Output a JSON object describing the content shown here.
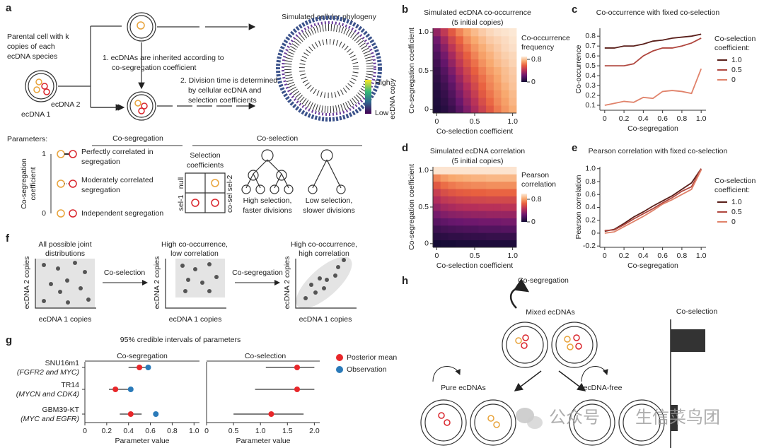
{
  "panels": {
    "letters": [
      "a",
      "b",
      "c",
      "d",
      "e",
      "f",
      "g",
      "h"
    ],
    "a": {
      "parental": [
        "Parental cell with k",
        "copies of each",
        "ecDNA species"
      ],
      "ecdna1": "ecDNA 1",
      "ecdna2": "ecDNA 2",
      "step1": [
        "1. ecDNAs are inherited according to",
        "co-segregation coefficient"
      ],
      "step2": [
        "2. Division time is determined",
        "by cellular ecDNA and",
        "selection coefficients"
      ],
      "phylogeny_title": "Simulated cellular phylogeny",
      "colorbar_high": "High",
      "colorbar_low": "Low",
      "colorbar_label": "ecDNA copy",
      "parameters": "Parameters:",
      "coseg_heading": "Co-segregation",
      "cosel_heading": "Co-selection",
      "coseg_axis": [
        "Co-segregation",
        "coefficient"
      ],
      "coseg_top": 1,
      "coseg_bottom": 0,
      "perfect": [
        "Perfectly correlated in",
        "segregation"
      ],
      "moderate": [
        "Moderately correlated",
        "segregation"
      ],
      "independent": "Independent segregation",
      "sel_coeff": [
        "Selection",
        "coefficients"
      ],
      "null": "null",
      "sel2": "sel-2",
      "sel1": "sel-1",
      "cosel": "co-sel",
      "high_sel": [
        "High selection,",
        "faster divisions"
      ],
      "low_sel": [
        "Low selection,",
        "slower divisions"
      ]
    },
    "f": {
      "all": [
        "All possible joint",
        "distributions"
      ],
      "arrow1": "Co-selection",
      "mid": [
        "High co-occurrence,",
        "low correlation"
      ],
      "arrow2": "Co-segregation",
      "right": [
        "High co-occurrence,",
        "high correlation"
      ],
      "xlabel": "ecDNA 1 copies",
      "ylabel": "ecDNA 2 copies"
    },
    "g": {
      "title": "95% credible intervals of parameters"
    },
    "h": {
      "coseg": "Co-segregation",
      "mixed": "Mixed ecDNAs",
      "pure": "Pure ecDNAs",
      "free": "ecDNA-free",
      "cosel": "Co-selection"
    },
    "watermark": [
      "公众号",
      "生信菜鸟团"
    ]
  },
  "chart_data": [
    {
      "type": "heatmap",
      "title": [
        "Simulated ecDNA co-occurrence",
        "(5 initial copies)"
      ],
      "xlabel": "Co-selection coefficient",
      "ylabel": "Co-segregation coefficient",
      "x": [
        0,
        0.1,
        0.2,
        0.3,
        0.4,
        0.5,
        0.6,
        0.7,
        0.8,
        0.9,
        1
      ],
      "y": [
        0,
        0.1,
        0.2,
        0.3,
        0.4,
        0.5,
        0.6,
        0.7,
        0.8,
        0.9,
        1
      ],
      "z": [
        [
          0.02,
          0.05,
          0.1,
          0.18,
          0.28,
          0.38,
          0.48,
          0.56,
          0.64,
          0.7,
          0.75
        ],
        [
          0.03,
          0.07,
          0.13,
          0.22,
          0.32,
          0.42,
          0.52,
          0.6,
          0.67,
          0.72,
          0.77
        ],
        [
          0.04,
          0.09,
          0.16,
          0.26,
          0.36,
          0.46,
          0.56,
          0.63,
          0.69,
          0.74,
          0.78
        ],
        [
          0.05,
          0.11,
          0.19,
          0.3,
          0.4,
          0.5,
          0.59,
          0.66,
          0.71,
          0.76,
          0.8
        ],
        [
          0.07,
          0.14,
          0.23,
          0.34,
          0.45,
          0.54,
          0.62,
          0.68,
          0.73,
          0.78,
          0.81
        ],
        [
          0.09,
          0.17,
          0.27,
          0.39,
          0.49,
          0.58,
          0.65,
          0.71,
          0.75,
          0.79,
          0.82
        ],
        [
          0.12,
          0.21,
          0.32,
          0.44,
          0.54,
          0.62,
          0.69,
          0.74,
          0.78,
          0.81,
          0.84
        ],
        [
          0.15,
          0.25,
          0.37,
          0.49,
          0.58,
          0.66,
          0.72,
          0.76,
          0.8,
          0.83,
          0.85
        ],
        [
          0.19,
          0.3,
          0.43,
          0.54,
          0.63,
          0.7,
          0.75,
          0.79,
          0.82,
          0.85,
          0.87
        ],
        [
          0.24,
          0.36,
          0.49,
          0.59,
          0.68,
          0.74,
          0.78,
          0.82,
          0.84,
          0.86,
          0.88
        ],
        [
          0.32,
          0.44,
          0.56,
          0.66,
          0.73,
          0.78,
          0.82,
          0.85,
          0.87,
          0.88,
          0.89
        ]
      ],
      "xlim": [
        -0.05,
        1.05
      ],
      "ylim": [
        -0.05,
        1.05
      ],
      "xticks": [
        0,
        0.5,
        {
          "value": 1,
          "label": "1.0"
        }
      ],
      "yticks": [
        0,
        0.5,
        {
          "value": 1,
          "label": "1.0"
        }
      ],
      "colorbar_label": [
        "Co-occurrence",
        "frequency"
      ],
      "clim": [
        0,
        0.9
      ],
      "cticks": [
        0,
        0.8
      ]
    },
    {
      "type": "line",
      "title": "Co-occurrence with fixed co-selection",
      "xlabel": "Co-segregation",
      "ylabel": "Co-occurrence",
      "x": [
        0,
        0.1,
        0.2,
        0.3,
        0.4,
        0.5,
        0.6,
        0.7,
        0.8,
        0.9,
        1
      ],
      "series": [
        {
          "name": "1.0",
          "color": "#5a1f1a",
          "values": [
            0.68,
            0.68,
            0.7,
            0.7,
            0.72,
            0.75,
            0.76,
            0.78,
            0.79,
            0.8,
            0.82
          ]
        },
        {
          "name": "0.5",
          "color": "#b0473f",
          "values": [
            0.5,
            0.5,
            0.5,
            0.52,
            0.6,
            0.65,
            0.68,
            0.68,
            0.7,
            0.73,
            0.78
          ]
        },
        {
          "name": "0",
          "color": "#e0826a",
          "values": [
            0.1,
            0.12,
            0.14,
            0.13,
            0.18,
            0.17,
            0.24,
            0.25,
            0.24,
            0.22,
            0.47
          ]
        }
      ],
      "legend_title": [
        "Co-selection",
        "coefficient:"
      ],
      "xlim": [
        -0.05,
        1.05
      ],
      "ylim": [
        0.05,
        0.88
      ],
      "xticks": [
        0,
        0.2,
        0.4,
        0.6,
        0.8,
        {
          "value": 1,
          "label": "1.0"
        }
      ],
      "yticks": [
        0.1,
        0.2,
        0.3,
        0.4,
        0.5,
        0.6,
        0.7,
        0.8
      ]
    },
    {
      "type": "heatmap",
      "title": [
        "Simulated ecDNA correlation",
        "(5 initial copies)"
      ],
      "xlabel": "Co-selection coefficient",
      "ylabel": "Co-segregation coefficient",
      "x": [
        0,
        0.1,
        0.2,
        0.3,
        0.4,
        0.5,
        0.6,
        0.7,
        0.8,
        0.9,
        1
      ],
      "y": [
        0,
        0.1,
        0.2,
        0.3,
        0.4,
        0.5,
        0.6,
        0.7,
        0.8,
        0.9,
        1
      ],
      "z": [
        [
          0.0,
          0.01,
          0.01,
          0.02,
          0.02,
          0.02,
          0.03,
          0.03,
          0.03,
          0.03,
          0.03
        ],
        [
          0.06,
          0.07,
          0.08,
          0.08,
          0.09,
          0.09,
          0.09,
          0.1,
          0.1,
          0.1,
          0.1
        ],
        [
          0.12,
          0.14,
          0.15,
          0.16,
          0.17,
          0.17,
          0.18,
          0.18,
          0.18,
          0.19,
          0.19
        ],
        [
          0.2,
          0.22,
          0.24,
          0.25,
          0.26,
          0.26,
          0.27,
          0.27,
          0.27,
          0.28,
          0.28
        ],
        [
          0.28,
          0.31,
          0.33,
          0.34,
          0.35,
          0.36,
          0.36,
          0.37,
          0.37,
          0.37,
          0.37
        ],
        [
          0.36,
          0.4,
          0.42,
          0.44,
          0.45,
          0.45,
          0.46,
          0.46,
          0.46,
          0.47,
          0.47
        ],
        [
          0.44,
          0.49,
          0.51,
          0.53,
          0.54,
          0.55,
          0.55,
          0.56,
          0.56,
          0.56,
          0.56
        ],
        [
          0.52,
          0.58,
          0.61,
          0.63,
          0.64,
          0.65,
          0.65,
          0.66,
          0.66,
          0.66,
          0.66
        ],
        [
          0.62,
          0.68,
          0.71,
          0.73,
          0.74,
          0.75,
          0.75,
          0.76,
          0.76,
          0.76,
          0.76
        ],
        [
          0.74,
          0.79,
          0.82,
          0.83,
          0.84,
          0.85,
          0.85,
          0.86,
          0.86,
          0.86,
          0.86
        ],
        [
          0.98,
          0.98,
          0.98,
          0.98,
          0.98,
          0.98,
          0.98,
          0.98,
          0.98,
          0.98,
          0.98
        ]
      ],
      "xlim": [
        -0.05,
        1.05
      ],
      "ylim": [
        -0.05,
        1.05
      ],
      "xticks": [
        0,
        0.5,
        {
          "value": 1,
          "label": "1.0"
        }
      ],
      "yticks": [
        0,
        0.5,
        {
          "value": 1,
          "label": "1.0"
        }
      ],
      "colorbar_label": [
        "Pearson",
        "correlation"
      ],
      "clim": [
        0,
        1
      ],
      "cticks": [
        0,
        0.8
      ]
    },
    {
      "type": "line",
      "title": "Pearson correlation with fixed co-selection",
      "xlabel": "Co-segregation",
      "ylabel": "Pearson correlation",
      "x": [
        0,
        0.1,
        0.2,
        0.3,
        0.4,
        0.5,
        0.6,
        0.7,
        0.8,
        0.9,
        1
      ],
      "series": [
        {
          "name": "1.0",
          "color": "#5a1f1a",
          "values": [
            0.03,
            0.06,
            0.15,
            0.25,
            0.33,
            0.42,
            0.5,
            0.58,
            0.68,
            0.78,
            1.0
          ]
        },
        {
          "name": "0.5",
          "color": "#b0473f",
          "values": [
            0.04,
            0.05,
            0.13,
            0.22,
            0.3,
            0.38,
            0.47,
            0.55,
            0.65,
            0.72,
            1.0
          ]
        },
        {
          "name": "0",
          "color": "#e0826a",
          "values": [
            0.0,
            0.02,
            0.1,
            0.18,
            0.26,
            0.35,
            0.45,
            0.52,
            0.6,
            0.68,
            0.98
          ]
        }
      ],
      "legend_title": [
        "Co-selection",
        "coefficient:"
      ],
      "xlim": [
        -0.05,
        1.05
      ],
      "ylim": [
        -0.22,
        1.03
      ],
      "xticks": [
        0,
        0.2,
        0.4,
        0.6,
        0.8,
        {
          "value": 1,
          "label": "1.0"
        }
      ],
      "yticks": [
        -0.2,
        0,
        0.2,
        0.4,
        0.6,
        0.8,
        {
          "value": 1,
          "label": "1.0"
        }
      ]
    },
    {
      "type": "interval",
      "title": "Co-segregation",
      "xlabel": "Parameter value",
      "categories": [
        [
          "SNU16m1",
          "(FGFR2 and MYC)"
        ],
        [
          "TR14",
          "(MYCN and CDK4)"
        ],
        [
          "GBM39-KT",
          "(MYC and EGFR)"
        ]
      ],
      "series": [
        {
          "name": "Posterior mean",
          "color": "#e8272a",
          "values": [
            0.5,
            0.28,
            0.42
          ]
        },
        {
          "name": "Observation",
          "color": "#2a7ab9",
          "values": [
            0.58,
            0.42,
            0.65
          ]
        }
      ],
      "low": [
        0.4,
        0.22,
        0.32
      ],
      "high": [
        0.6,
        0.4,
        0.52
      ],
      "xlim": [
        0,
        1.05
      ],
      "xticks": [
        0,
        0.2,
        0.4,
        0.6,
        0.8,
        {
          "value": 1,
          "label": "1.0"
        }
      ]
    },
    {
      "type": "interval",
      "title": "Co-selection",
      "xlabel": "Parameter value",
      "series": [
        {
          "color": "#e8272a",
          "values": [
            1.68,
            1.68,
            1.2
          ]
        }
      ],
      "low": [
        1.1,
        0.9,
        0.5
      ],
      "high": [
        2.0,
        2.0,
        1.8
      ],
      "xlim": [
        0,
        2.1
      ],
      "xticks": [
        0,
        0.5,
        {
          "value": 1,
          "label": "1.0"
        },
        1.5,
        {
          "value": 2,
          "label": "2.0"
        }
      ]
    }
  ]
}
